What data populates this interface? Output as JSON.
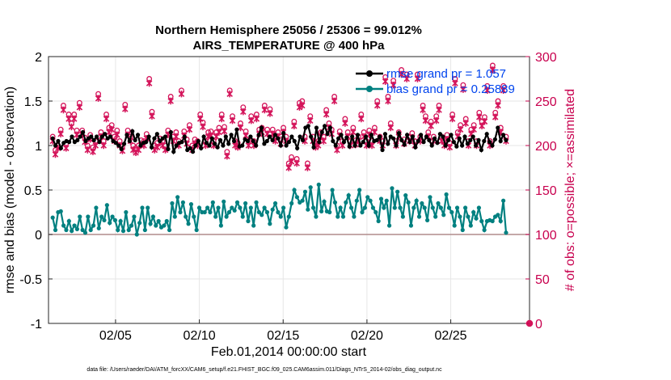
{
  "chart_data": {
    "type": "line",
    "title_line1": "Northern Hemisphere 25056 / 25306 = 99.012%",
    "title_line2": "AIRS_TEMPERATURE @ 400 hPa",
    "xlabel": "Feb.01,2014 00:00:00 start",
    "ylabel_left": "rmse and bias (model - observation)",
    "ylabel_right": "# of obs: o=possible; ×=assimilated",
    "ylim_left": [
      -1,
      2
    ],
    "ylim_right": [
      0,
      300
    ],
    "xlim_days": [
      1,
      29.7
    ],
    "yticks_left": [
      "-1",
      "-0.5",
      "0",
      "0.5",
      "1",
      "1.5",
      "2"
    ],
    "yticks_right": [
      "0",
      "50",
      "100",
      "150",
      "200",
      "250",
      "300"
    ],
    "xticks": [
      {
        "day": 5,
        "label": "02/05"
      },
      {
        "day": 10,
        "label": "02/10"
      },
      {
        "day": 15,
        "label": "02/15"
      },
      {
        "day": 20,
        "label": "02/20"
      },
      {
        "day": 25,
        "label": "02/25"
      }
    ],
    "legend": [
      {
        "label": "rmse grand pr = 1.057",
        "color": "#000000"
      },
      {
        "label": "bias grand pr = 0.25889",
        "color": "#008080"
      }
    ],
    "colors": {
      "rmse": "#000000",
      "bias": "#008080",
      "obs": "#d4145a",
      "zero_line": "#b08c8c",
      "grid": "#e6e6e6"
    },
    "rmse": [
      1.08,
      1.0,
      1.05,
      0.97,
      1.03,
      1.05,
      1.04,
      1.1,
      1.04,
      1.06,
      1.1,
      1.15,
      1.05,
      1.08,
      1.1,
      1.06,
      1.1,
      1.04,
      1.1,
      1.13,
      1.08,
      1.1,
      1.05,
      1.03,
      1.0,
      0.96,
      1.02,
      1.12,
      1.05,
      1.16,
      1.06,
      1.12,
      1.0,
      1.03,
      1.04,
      1.1,
      0.98,
      1.08,
      1.13,
      1.05,
      1.08,
      1.1,
      0.96,
      1.15,
      0.93,
      1.0,
      1.03,
      1.04,
      1.1,
      0.95,
      0.97,
      0.93,
      1.0,
      1.05,
      0.97,
      1.1,
      1.03,
      1.0,
      1.08,
      1.02,
      0.98,
      1.06,
      1.0,
      1.1,
      1.02,
      1.12,
      1.05,
      1.18,
      0.99,
      1.0,
      1.07,
      1.05,
      1.1,
      1.05,
      1.0,
      1.12,
      1.2,
      1.02,
      1.05,
      1.1,
      1.06,
      1.12,
      1.08,
      1.0,
      1.14,
      1.0,
      1.04,
      1.1,
      1.05,
      0.97,
      1.1,
      1.06,
      1.2,
      1.22,
      1.1,
      0.98,
      1.2,
      1.04,
      1.15,
      1.22,
      1.13,
      1.2,
      1.05,
      1.0,
      1.08,
      1.12,
      1.04,
      1.09,
      0.99,
      1.1,
      1.0,
      1.12,
      1.0,
      1.04,
      1.1,
      1.0,
      1.12,
      1.05,
      1.06,
      1.1,
      0.95,
      1.13,
      1.02,
      1.1,
      1.08,
      1.0,
      1.14,
      1.06,
      1.01,
      1.12,
      1.04,
      1.1,
      0.98,
      1.05,
      1.12,
      1.04,
      1.1,
      1.06,
      1.0,
      1.08,
      1.03,
      1.13,
      1.1,
      1.0,
      1.06,
      1.12,
      1.04,
      0.99,
      1.08,
      1.0,
      1.1,
      1.02,
      1.06,
      1.1,
      1.0,
      1.06,
      0.95,
      1.05,
      1.13,
      1.04,
      1.0,
      1.07,
      1.2,
      1.05,
      1.12,
      1.06
    ],
    "bias": [
      0.19,
      0.05,
      0.25,
      0.26,
      0.1,
      0.05,
      0.15,
      0.04,
      0.1,
      0.06,
      0.2,
      0.05,
      0.02,
      0.2,
      0.05,
      0.1,
      0.3,
      0.07,
      0.2,
      0.16,
      0.33,
      0.13,
      0.2,
      0.16,
      0.05,
      0.15,
      0.04,
      0.25,
      0.05,
      0.1,
      0.2,
      0.0,
      0.13,
      0.3,
      0.05,
      0.3,
      0.12,
      0.2,
      0.1,
      0.15,
      0.08,
      0.1,
      0.15,
      0.05,
      0.35,
      0.2,
      0.42,
      0.25,
      0.36,
      0.2,
      0.12,
      0.34,
      0.2,
      0.05,
      0.3,
      0.25,
      0.25,
      0.3,
      0.25,
      0.36,
      0.2,
      0.3,
      0.1,
      0.37,
      0.2,
      0.25,
      0.3,
      0.27,
      0.36,
      0.3,
      0.2,
      0.35,
      0.15,
      0.3,
      0.1,
      0.36,
      0.25,
      0.22,
      0.3,
      0.25,
      0.12,
      0.28,
      0.35,
      0.25,
      0.2,
      0.3,
      0.08,
      0.2,
      0.35,
      0.5,
      0.42,
      0.36,
      0.38,
      0.48,
      0.28,
      0.53,
      0.3,
      0.2,
      0.56,
      0.26,
      0.37,
      0.26,
      0.25,
      0.5,
      0.36,
      0.2,
      0.3,
      0.2,
      0.36,
      0.44,
      0.3,
      0.2,
      0.38,
      0.5,
      0.25,
      0.3,
      0.42,
      0.38,
      0.3,
      0.25,
      0.15,
      0.4,
      0.3,
      0.38,
      0.1,
      0.52,
      0.3,
      0.48,
      0.3,
      0.2,
      0.44,
      0.36,
      0.1,
      0.3,
      0.38,
      0.2,
      0.35,
      0.3,
      0.16,
      0.42,
      0.3,
      0.2,
      0.35,
      0.3,
      0.22,
      0.45,
      0.3,
      0.25,
      0.1,
      0.3,
      0.2,
      0.05,
      0.3,
      0.2,
      0.1,
      0.25,
      0.18,
      0.3,
      0.15,
      0.05,
      0.15,
      0.16,
      0.15,
      0.2,
      0.22,
      0.15,
      0.38,
      0.02
    ],
    "obs_assimilated": [
      205,
      190,
      197,
      213,
      240,
      197,
      230,
      221,
      230,
      212,
      243,
      212,
      204,
      195,
      207,
      193,
      200,
      253,
      210,
      200,
      230,
      215,
      218,
      205,
      212,
      200,
      194,
      241,
      212,
      205,
      195,
      192,
      195,
      201,
      200,
      208,
      270,
      233,
      195,
      198,
      203,
      200,
      195,
      212,
      250,
      205,
      210,
      200,
      258,
      211,
      202,
      218,
      195,
      202,
      200,
      230,
      221,
      200,
      210,
      211,
      200,
      210,
      215,
      230,
      216,
      188,
      258,
      228,
      200,
      198,
      220,
      238,
      211,
      200,
      228,
      200,
      230,
      213,
      215,
      240,
      213,
      236,
      213,
      205,
      210,
      202,
      215,
      205,
      175,
      182,
      222,
      180,
      243,
      245,
      205,
      175,
      228,
      205,
      198,
      200,
      210,
      205,
      235,
      220,
      213,
      250,
      195,
      211,
      200,
      225,
      210,
      200,
      215,
      201,
      205,
      230,
      210,
      200,
      212,
      200,
      215,
      245,
      205,
      200,
      272,
      250,
      220,
      268,
      200,
      210,
      280,
      202,
      275,
      205,
      209,
      200,
      275,
      205,
      240,
      228,
      210,
      222,
      205,
      228,
      240,
      205,
      200,
      207,
      198,
      230,
      270,
      210,
      218,
      263,
      225,
      200,
      213,
      218,
      200,
      232,
      222,
      227,
      262,
      200,
      285,
      232,
      245,
      215,
      262,
      205
    ],
    "obs_possible": [
      210,
      195,
      200,
      218,
      245,
      202,
      235,
      225,
      235,
      217,
      248,
      217,
      209,
      200,
      212,
      198,
      205,
      258,
      215,
      205,
      235,
      220,
      223,
      210,
      217,
      205,
      199,
      246,
      217,
      210,
      200,
      197,
      200,
      206,
      205,
      213,
      275,
      238,
      200,
      203,
      208,
      205,
      200,
      217,
      255,
      210,
      215,
      205,
      262,
      216,
      207,
      223,
      200,
      207,
      205,
      235,
      226,
      205,
      215,
      216,
      205,
      215,
      220,
      235,
      221,
      193,
      262,
      233,
      205,
      203,
      225,
      243,
      216,
      205,
      233,
      205,
      235,
      218,
      220,
      245,
      218,
      241,
      218,
      210,
      215,
      207,
      220,
      210,
      180,
      187,
      227,
      185,
      248,
      250,
      210,
      180,
      233,
      210,
      203,
      205,
      215,
      210,
      240,
      225,
      218,
      255,
      200,
      216,
      205,
      230,
      215,
      205,
      220,
      206,
      210,
      235,
      215,
      205,
      217,
      205,
      220,
      250,
      210,
      205,
      277,
      255,
      225,
      273,
      205,
      215,
      285,
      207,
      280,
      210,
      214,
      205,
      280,
      210,
      245,
      233,
      215,
      227,
      210,
      233,
      245,
      210,
      205,
      212,
      203,
      235,
      275,
      215,
      223,
      268,
      230,
      205,
      218,
      223,
      205,
      237,
      227,
      232,
      267,
      205,
      290,
      237,
      250,
      220,
      267,
      210
    ]
  },
  "footer": "data file: /Users/raeder/DAI/ATM_forcXX/CAM6_setup/f.e21.FHIST_BGC.f09_025.CAM6assim.011/Diags_NTrS_2014-02/obs_diag_output.nc"
}
